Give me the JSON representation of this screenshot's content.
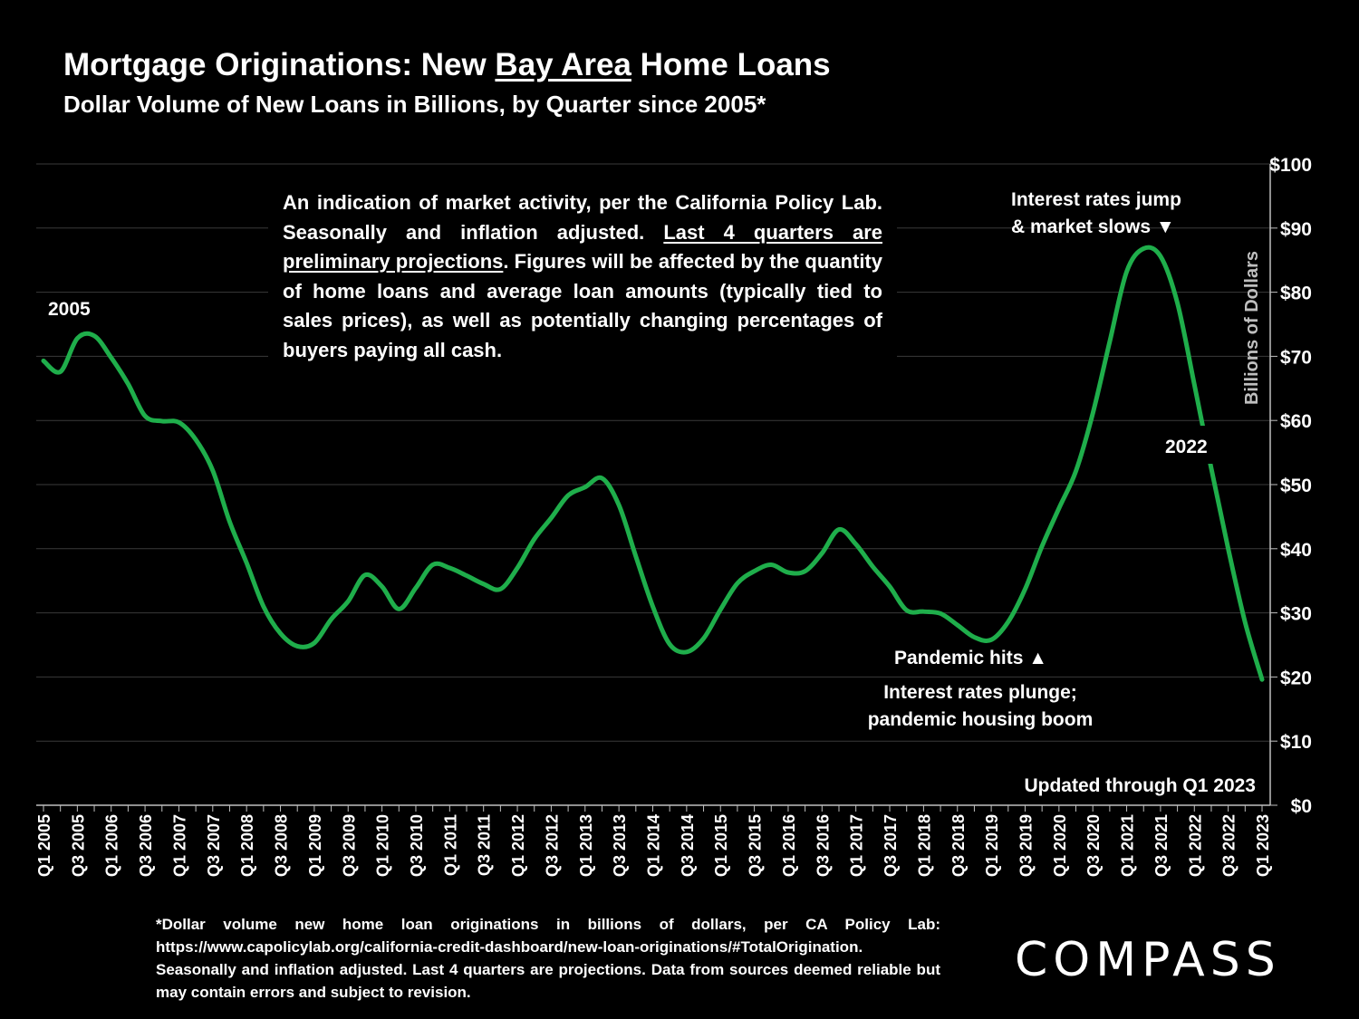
{
  "header": {
    "title_pre": "Mortgage Originations: New ",
    "title_underlined": "Bay Area",
    "title_post": " Home Loans",
    "subtitle": "Dollar Volume of New Loans in Billions, by Quarter since 2005*"
  },
  "note": {
    "part1": "An indication of market activity, per the California Policy Lab. Seasonally and inflation adjusted. ",
    "underlined": "Last 4 quarters are preliminary projections",
    "part2": ". Figures will be affected by the quantity of home loans and average loan amounts (typically tied to sales prices), as well as potentially changing percentages of buyers paying all cash."
  },
  "annotations": {
    "year_2005": "2005",
    "year_2022": "2022",
    "rates_jump_line1": "Interest rates jump",
    "rates_jump_line2": "& market slows ▼",
    "pandemic_hits": "Pandemic hits ▲",
    "rates_plunge_line1": "Interest rates plunge;",
    "rates_plunge_line2": "pandemic housing boom",
    "updated": "Updated through Q1 2023"
  },
  "footnote": "*Dollar volume new home loan originations in billions of dollars, per CA Policy Lab: https://www.capolicylab.org/california-credit-dashboard/new-loan-originations/#TotalOrigination. Seasonally and inflation adjusted. Last 4 quarters are projections. Data from sources deemed reliable but may contain errors and subject to revision.",
  "logo": "COMPASS",
  "colors": {
    "line": "#1fae4b",
    "grid": "#3a3a3a",
    "background": "#000000",
    "text": "#ffffff"
  },
  "chart_data": {
    "type": "line",
    "title": "Mortgage Originations: New Bay Area Home Loans",
    "subtitle": "Dollar Volume of New Loans in Billions, by Quarter since 2005*",
    "ylabel": "Billions of Dollars",
    "ylim": [
      0,
      100
    ],
    "y_ticks": [
      "$0",
      "$10",
      "$20",
      "$30",
      "$40",
      "$50",
      "$60",
      "$70",
      "$80",
      "$90",
      "$100"
    ],
    "y_tick_values": [
      0,
      10,
      20,
      30,
      40,
      50,
      60,
      70,
      80,
      90,
      100
    ],
    "y_axis_side": "right",
    "grid": true,
    "x_tick_labels": [
      "Q1 2005",
      "Q3 2005",
      "Q1 2006",
      "Q3 2006",
      "Q1 2007",
      "Q3 2007",
      "Q1 2008",
      "Q3 2008",
      "Q1 2009",
      "Q3 2009",
      "Q1 2010",
      "Q3 2010",
      "Q1 2011",
      "Q3 2011",
      "Q1 2012",
      "Q3 2012",
      "Q1 2013",
      "Q3 2013",
      "Q1 2014",
      "Q3 2014",
      "Q1 2015",
      "Q3 2015",
      "Q1 2016",
      "Q3 2016",
      "Q1 2017",
      "Q3 2017",
      "Q1 2018",
      "Q3 2018",
      "Q1 2019",
      "Q3 2019",
      "Q1 2020",
      "Q3 2020",
      "Q1 2021",
      "Q3 2021",
      "Q1 2022",
      "Q3 2022",
      "Q1 2023"
    ],
    "series": [
      {
        "values": [
          69.3,
          67.6,
          72.8,
          73.2,
          69.8,
          65.7,
          60.7,
          59.9,
          59.7,
          57.0,
          52.2,
          44.2,
          37.8,
          31.0,
          26.8,
          24.8,
          25.3,
          29.0,
          31.8,
          35.9,
          34.1,
          30.6,
          33.9,
          37.5,
          37.0,
          35.8,
          34.5,
          33.7,
          37.0,
          41.5,
          44.8,
          48.3,
          49.6,
          51.0,
          46.8,
          38.8,
          31.0,
          25.1,
          23.9,
          26.0,
          30.5,
          34.6,
          36.5,
          37.5,
          36.3,
          36.5,
          39.3,
          43.0,
          40.7,
          37.2,
          34.1,
          30.4,
          30.2,
          29.9,
          28.1,
          26.2,
          25.8,
          28.6,
          33.7,
          40.4,
          46.3,
          52.1,
          61.1,
          72.3,
          83.2,
          86.8,
          85.6,
          78.3,
          65.6,
          52.5,
          40.0,
          28.5,
          19.6
        ]
      }
    ]
  }
}
